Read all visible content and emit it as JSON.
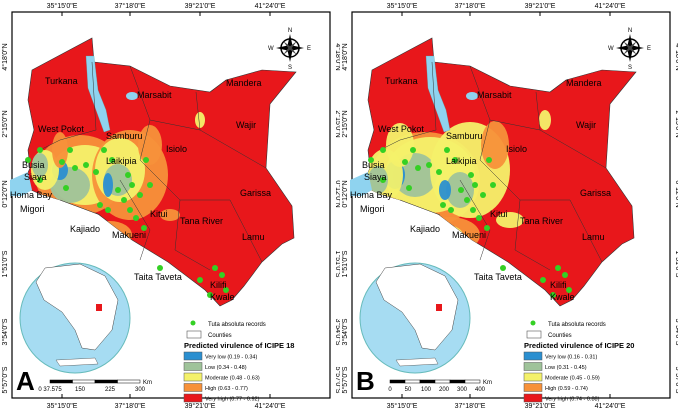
{
  "figure": {
    "graticule": {
      "lon_labels": [
        "35°15'0\"E",
        "37°18'0\"E",
        "39°21'0\"E",
        "41°24'0\"E"
      ],
      "lat_labels": [
        "4°18'0\"N",
        "2°15'0\"N",
        "0°12'0\"N",
        "1°51'0\"S",
        "3°54'0\"S",
        "5°57'0\"S"
      ]
    },
    "compass": {
      "n": "N",
      "s": "S",
      "e": "E",
      "w": "W"
    },
    "counties": [
      "Turkana",
      "Marsabit",
      "Mandera",
      "West Pokot",
      "Wajir",
      "Samburu",
      "Isiolo",
      "Busia",
      "Siaya",
      "Laikipia",
      "Homa Bay",
      "Migori",
      "Garissa",
      "Kitui",
      "Tana River",
      "Kajiado",
      "Makueni",
      "Lamu",
      "Taita Taveta",
      "Kilifi",
      "Kwale"
    ],
    "legend_common": {
      "records_label": "Tuta absoluta records",
      "counties_label": "Counties"
    },
    "colors": {
      "very_low": "#2b8fd0",
      "low": "#9fc39a",
      "moderate": "#f4f16a",
      "high": "#f7913a",
      "very_high": "#e8171b",
      "water": "#8fd3ef",
      "records": "#34d024"
    },
    "panels": [
      {
        "letter": "A",
        "legend_title": "Predicted virulence of ICIPE 18",
        "classes": [
          "Very low (0.19 - 0.34)",
          "Low (0.34 - 0.48)",
          "Moderate (0.48 - 0.63)",
          "High (0.63 - 0.77)",
          "Very high (0.77 - 0.92)"
        ],
        "scale_ticks": [
          "0 37.575",
          "150",
          "225",
          "300"
        ],
        "scale_unit": "Km"
      },
      {
        "letter": "B",
        "legend_title": "Predicted virulence of ICIPE 20",
        "classes": [
          "Very low (0.16 - 0.31)",
          "Low (0.31 - 0.45)",
          "Moderate (0.45 - 0.59)",
          "High (0.59 - 0.74)",
          "Very high (0.74 - 0.88)"
        ],
        "scale_ticks": [
          "0",
          "50",
          "100",
          "200",
          "300",
          "400"
        ],
        "scale_unit": "Km"
      }
    ]
  }
}
